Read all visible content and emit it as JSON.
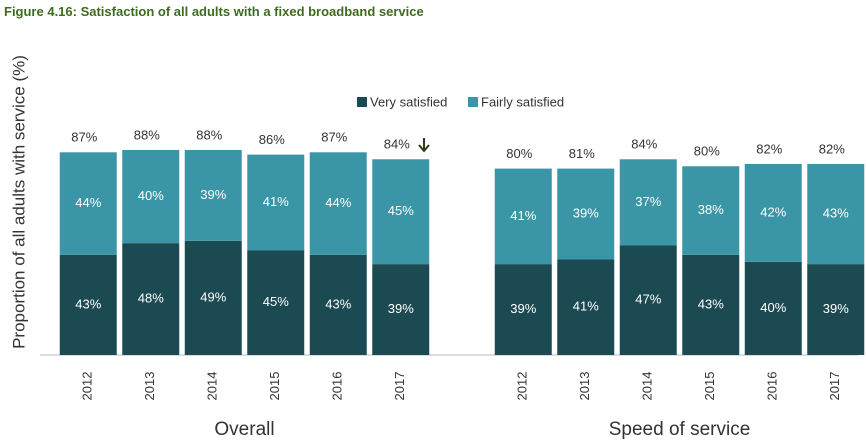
{
  "title": "Figure 4.16: Satisfaction of all adults with a fixed broadband service",
  "chart_data": [
    {
      "type": "bar",
      "stacked": true,
      "ylabel": "Proportion of all adults with service (%)",
      "xlabel": "Overall",
      "categories": [
        "2012",
        "2013",
        "2014",
        "2015",
        "2016",
        "2017"
      ],
      "ylim": [
        0,
        100
      ],
      "series": [
        {
          "name": "Very satisfied",
          "color": "#1b4a52",
          "values": [
            43,
            48,
            49,
            45,
            43,
            39
          ],
          "value_labels": [
            "43%",
            "48%",
            "49%",
            "45%",
            "43%",
            "39%"
          ]
        },
        {
          "name": "Fairly satisfied",
          "color": "#3a96a6",
          "values": [
            44,
            40,
            39,
            41,
            44,
            45
          ],
          "value_labels": [
            "44%",
            "40%",
            "39%",
            "41%",
            "44%",
            "45%"
          ]
        }
      ],
      "totals": [
        87,
        88,
        88,
        86,
        87,
        84
      ],
      "total_labels": [
        "87%",
        "88%",
        "88%",
        "86%",
        "87%",
        "84%"
      ]
    },
    {
      "type": "bar",
      "stacked": true,
      "xlabel": "Speed of service",
      "categories": [
        "2012",
        "2013",
        "2014",
        "2015",
        "2016",
        "2017"
      ],
      "ylim": [
        0,
        100
      ],
      "series": [
        {
          "name": "Very satisfied",
          "color": "#1b4a52",
          "values": [
            39,
            41,
            47,
            43,
            40,
            39
          ],
          "value_labels": [
            "39%",
            "41%",
            "47%",
            "43%",
            "40%",
            "39%"
          ]
        },
        {
          "name": "Fairly satisfied",
          "color": "#3a96a6",
          "values": [
            41,
            39,
            37,
            38,
            42,
            43
          ],
          "value_labels": [
            "41%",
            "39%",
            "37%",
            "38%",
            "42%",
            "43%"
          ]
        }
      ],
      "totals": [
        80,
        81,
        84,
        80,
        82,
        82
      ],
      "total_labels": [
        "80%",
        "81%",
        "84%",
        "80%",
        "82%",
        "82%"
      ]
    }
  ]
}
